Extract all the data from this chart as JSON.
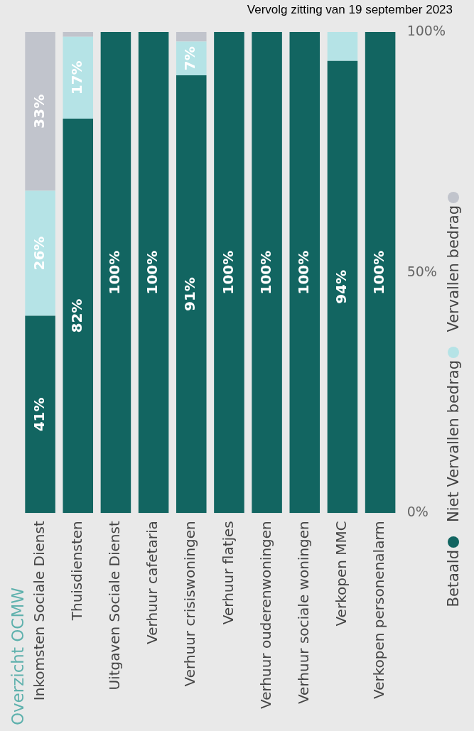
{
  "chart_data": {
    "type": "bar",
    "title": "Overzicht OCMW",
    "annotations": [
      "Vervolg zitting van 19 september 2023"
    ],
    "stacked": true,
    "legend": "right",
    "categories": [
      "Inkomsten Sociale Dienst",
      "Thuisdiensten",
      "Uitgaven Sociale Dienst",
      "Verhuur cafetaria",
      "Verhuur crisiswoningen",
      "Verhuur flatjes",
      "Verhuur ouderenwoningen",
      "Verhuur sociale woningen",
      "Verkopen MMC",
      "Verkopen personenalarm"
    ],
    "ylim": [
      0,
      100
    ],
    "yticks": [
      {
        "value": 0,
        "label": "0%"
      },
      {
        "value": 50,
        "label": "50%"
      },
      {
        "value": 100,
        "label": "100%"
      }
    ],
    "series": [
      {
        "name": "Betaald",
        "color": "#126561",
        "values": [
          41,
          82,
          100,
          100,
          91,
          100,
          100,
          100,
          94,
          100
        ],
        "value_labels": [
          "41%",
          "82%",
          "100%",
          "100%",
          "91%",
          "100%",
          "100%",
          "100%",
          "94%",
          "100%"
        ]
      },
      {
        "name": "Niet Vervallen bedrag",
        "color": "#b5e3e6",
        "values": [
          26,
          17,
          0,
          0,
          7,
          0,
          0,
          0,
          6,
          0
        ],
        "value_labels": [
          "26%",
          "17%",
          null,
          null,
          "7%",
          null,
          null,
          null,
          null,
          null
        ]
      },
      {
        "name": "Vervallen bedrag",
        "color": "#c1c4cc",
        "values": [
          33,
          1,
          0,
          0,
          2,
          0,
          0,
          0,
          0,
          0
        ],
        "value_labels": [
          "33%",
          null,
          null,
          null,
          null,
          null,
          null,
          null,
          null,
          null
        ]
      }
    ]
  }
}
